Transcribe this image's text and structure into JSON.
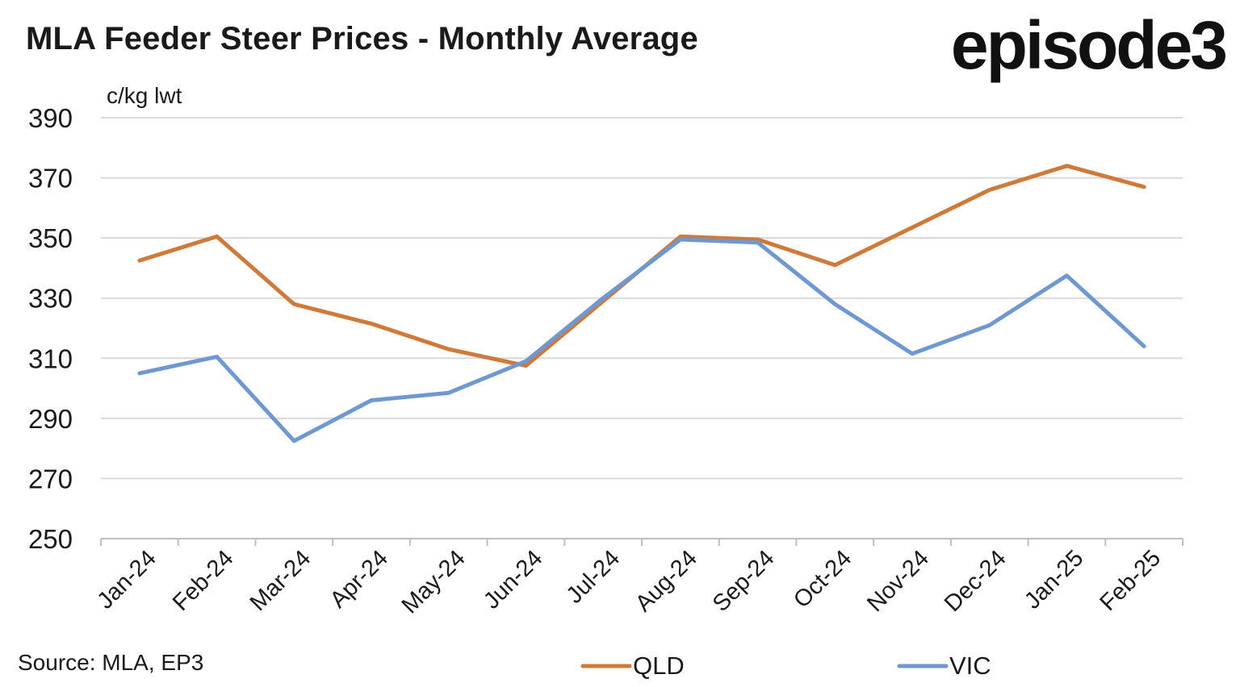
{
  "title": "MLA Feeder Steer Prices - Monthly Average",
  "logo": "episode3",
  "source": "Source: MLA, EP3",
  "chart_data": {
    "type": "line",
    "title": "MLA Feeder Steer Prices - Monthly Average",
    "ylabel": "c/kg lwt",
    "xlabel": "",
    "ylim": [
      250,
      390
    ],
    "yticks": [
      250,
      270,
      290,
      310,
      330,
      350,
      370,
      390
    ],
    "grid": "horizontal",
    "legend_placement": "bottom",
    "categories": [
      "Jan-24",
      "Feb-24",
      "Mar-24",
      "Apr-24",
      "May-24",
      "Jun-24",
      "Jul-24",
      "Aug-24",
      "Sep-24",
      "Oct-24",
      "Nov-24",
      "Dec-24",
      "Jan-25",
      "Feb-25"
    ],
    "series": [
      {
        "name": "QLD",
        "color": "#D07A3A",
        "values": [
          342.5,
          350.5,
          328,
          321.5,
          313,
          307.5,
          329,
          350.5,
          349.5,
          341,
          353.5,
          366,
          374,
          367
        ]
      },
      {
        "name": "VIC",
        "color": "#6E98D4",
        "values": [
          305,
          310.5,
          282.5,
          296,
          298.5,
          309,
          330,
          349.5,
          348.5,
          328,
          311.5,
          321,
          337.5,
          314
        ]
      }
    ]
  }
}
